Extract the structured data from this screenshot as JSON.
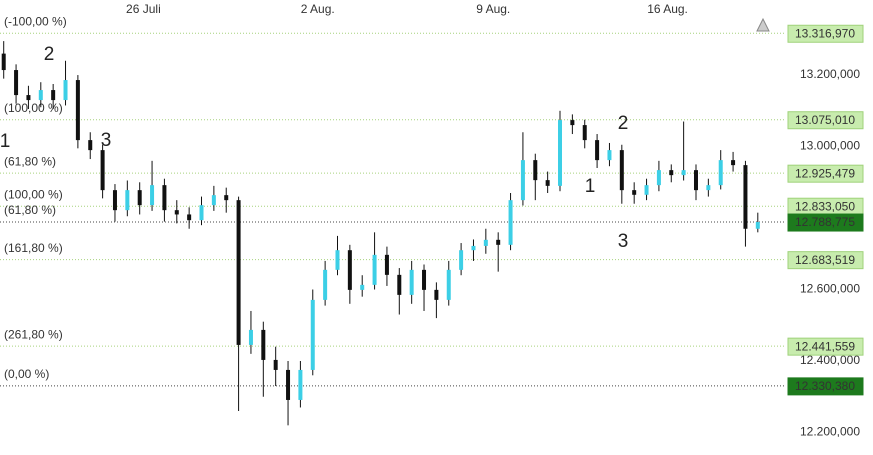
{
  "chart_data": {
    "type": "candlestick",
    "open": [
      13260,
      13214,
      13144,
      13130,
      13158,
      13130,
      13186,
      13018,
      12990,
      12878,
      12822,
      12878,
      12836,
      12892,
      12822,
      12810,
      12794,
      12836,
      12864,
      12850,
      12445,
      12487,
      12403,
      12375,
      12291,
      12375,
      12571,
      12655,
      12710,
      12599,
      12613,
      12697,
      12641,
      12585,
      12655,
      12599,
      12571,
      12655,
      12710,
      12722,
      12739,
      12725,
      12850,
      12962,
      12906,
      12890,
      13074,
      13060,
      13018,
      12962,
      12990,
      12878,
      12865,
      12892,
      12934,
      12920,
      12934,
      12878,
      12892,
      12962,
      12948,
      12770
    ],
    "high": [
      13295,
      13230,
      13170,
      13180,
      13175,
      13240,
      13200,
      13040,
      13005,
      12895,
      12905,
      12900,
      12960,
      12910,
      12850,
      12830,
      12860,
      12890,
      12885,
      12860,
      12540,
      12510,
      12440,
      12400,
      12400,
      12600,
      12680,
      12750,
      12725,
      12640,
      12760,
      12720,
      12660,
      12680,
      12670,
      12620,
      12680,
      12730,
      12740,
      12770,
      12760,
      12870,
      13040,
      12980,
      12930,
      13100,
      13090,
      13075,
      13035,
      13010,
      13005,
      12900,
      12910,
      12960,
      12950,
      13070,
      12950,
      12910,
      12990,
      12985,
      12960,
      12815
    ],
    "low": [
      13190,
      13120,
      13105,
      13110,
      13105,
      13115,
      12995,
      12965,
      12855,
      12790,
      12805,
      12810,
      12820,
      12790,
      12785,
      12770,
      12780,
      12820,
      12815,
      12260,
      12420,
      12300,
      12330,
      12220,
      12270,
      12360,
      12555,
      12640,
      12560,
      12580,
      12600,
      12610,
      12530,
      12560,
      12540,
      12520,
      12555,
      12640,
      12680,
      12700,
      12650,
      12710,
      12835,
      12850,
      12870,
      12875,
      13035,
      12995,
      12940,
      12945,
      12840,
      12840,
      12850,
      12875,
      12900,
      12905,
      12850,
      12860,
      12880,
      12930,
      12720,
      12760
    ],
    "close": [
      13214,
      13144,
      13130,
      13158,
      13130,
      13186,
      13018,
      12990,
      12878,
      12822,
      12878,
      12836,
      12892,
      12822,
      12810,
      12794,
      12836,
      12864,
      12850,
      12445,
      12487,
      12403,
      12375,
      12291,
      12375,
      12571,
      12655,
      12710,
      12599,
      12613,
      12697,
      12641,
      12585,
      12655,
      12599,
      12571,
      12655,
      12710,
      12722,
      12739,
      12725,
      12850,
      12962,
      12906,
      12890,
      13074,
      13060,
      13018,
      12962,
      12990,
      12878,
      12865,
      12892,
      12934,
      12920,
      12934,
      12878,
      12892,
      12962,
      12948,
      12770,
      12788.775
    ],
    "up_color": "#3ccfe6",
    "down_color": "#111111",
    "xlim": [
      -0.3,
      63.2
    ],
    "xticks": [
      {
        "value": 11.3,
        "label": "26 Juli"
      },
      {
        "value": 25.4,
        "label": "2 Aug."
      },
      {
        "value": 39.6,
        "label": "9 Aug."
      },
      {
        "value": 53.7,
        "label": "16 Aug."
      }
    ],
    "ylim": [
      12137,
      13410
    ],
    "yticks": [
      {
        "value": 12200,
        "label": "12.200,000"
      },
      {
        "value": 12400,
        "label": "12.400,000"
      },
      {
        "value": 12600,
        "label": "12.600,000"
      },
      {
        "value": 13000,
        "label": "13.000,000"
      },
      {
        "value": 13200,
        "label": "13.200,000"
      }
    ],
    "levels": [
      {
        "value": 13316.97,
        "label": "13.316,970",
        "fib": "(-100,00 %)",
        "color": "#c8ecae"
      },
      {
        "value": 13075.01,
        "label": "13.075,010",
        "fib": "(100,00 %)",
        "color": "#c8ecae"
      },
      {
        "value": 12925.479,
        "label": "12.925,479",
        "fib": "(61,80 %)",
        "color": "#c8ecae"
      },
      {
        "value": 12833.05,
        "label": "12.833,050",
        "fib": "(100,00 %)",
        "color": "#c8ecae"
      },
      {
        "value": 12788.775,
        "label": "12.788,775",
        "fib": "(61,80 %)",
        "color": "#1d7a1d"
      },
      {
        "value": 12683.519,
        "label": "12.683,519",
        "fib": "(161,80 %)",
        "color": "#c8ecae"
      },
      {
        "value": 12441.559,
        "label": "12.441,559",
        "fib": "(261,80 %)",
        "color": "#c8ecae"
      },
      {
        "value": 12330.38,
        "label": "12.330,380",
        "fib": "(0,00 %)",
        "color": "#1d7a1d"
      }
    ],
    "annotations": [
      "1",
      "2",
      "3",
      "2",
      "1",
      "3"
    ]
  }
}
